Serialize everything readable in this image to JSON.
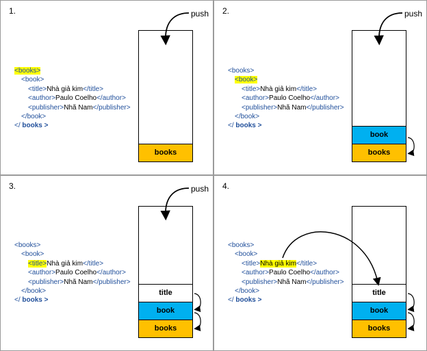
{
  "push_label": "push",
  "xml": {
    "books_open": "<books>",
    "book_open": "<book>",
    "title_open": "<title>",
    "title_text": "Nhà giả kim",
    "title_close": "</title>",
    "author_open": "<author>",
    "author_text": "Paulo Coelho",
    "author_close": "</author>",
    "publisher_open": "<publisher>",
    "publisher_text": "Nhã Nam",
    "publisher_close": "</publisher>",
    "book_close": "</book>",
    "books_close_tag": "</",
    "books_close_name": " books >"
  },
  "stack_labels": {
    "books": "books",
    "book": "book",
    "title": "title"
  },
  "colors": {
    "books": "#ffc000",
    "book": "#00b0f0",
    "title": "#ffffff",
    "highlight": "#ffff00",
    "tag": "#1f4e9a"
  },
  "panels": [
    {
      "number": "1.",
      "highlight": "books",
      "stack": [
        "books"
      ],
      "push": true
    },
    {
      "number": "2.",
      "highlight": "book",
      "stack": [
        "books",
        "book"
      ],
      "push": true
    },
    {
      "number": "3.",
      "highlight": "title",
      "stack": [
        "books",
        "book",
        "title"
      ],
      "push": true
    },
    {
      "number": "4.",
      "highlight": "title_text",
      "stack": [
        "books",
        "book",
        "title"
      ],
      "push": false
    }
  ]
}
